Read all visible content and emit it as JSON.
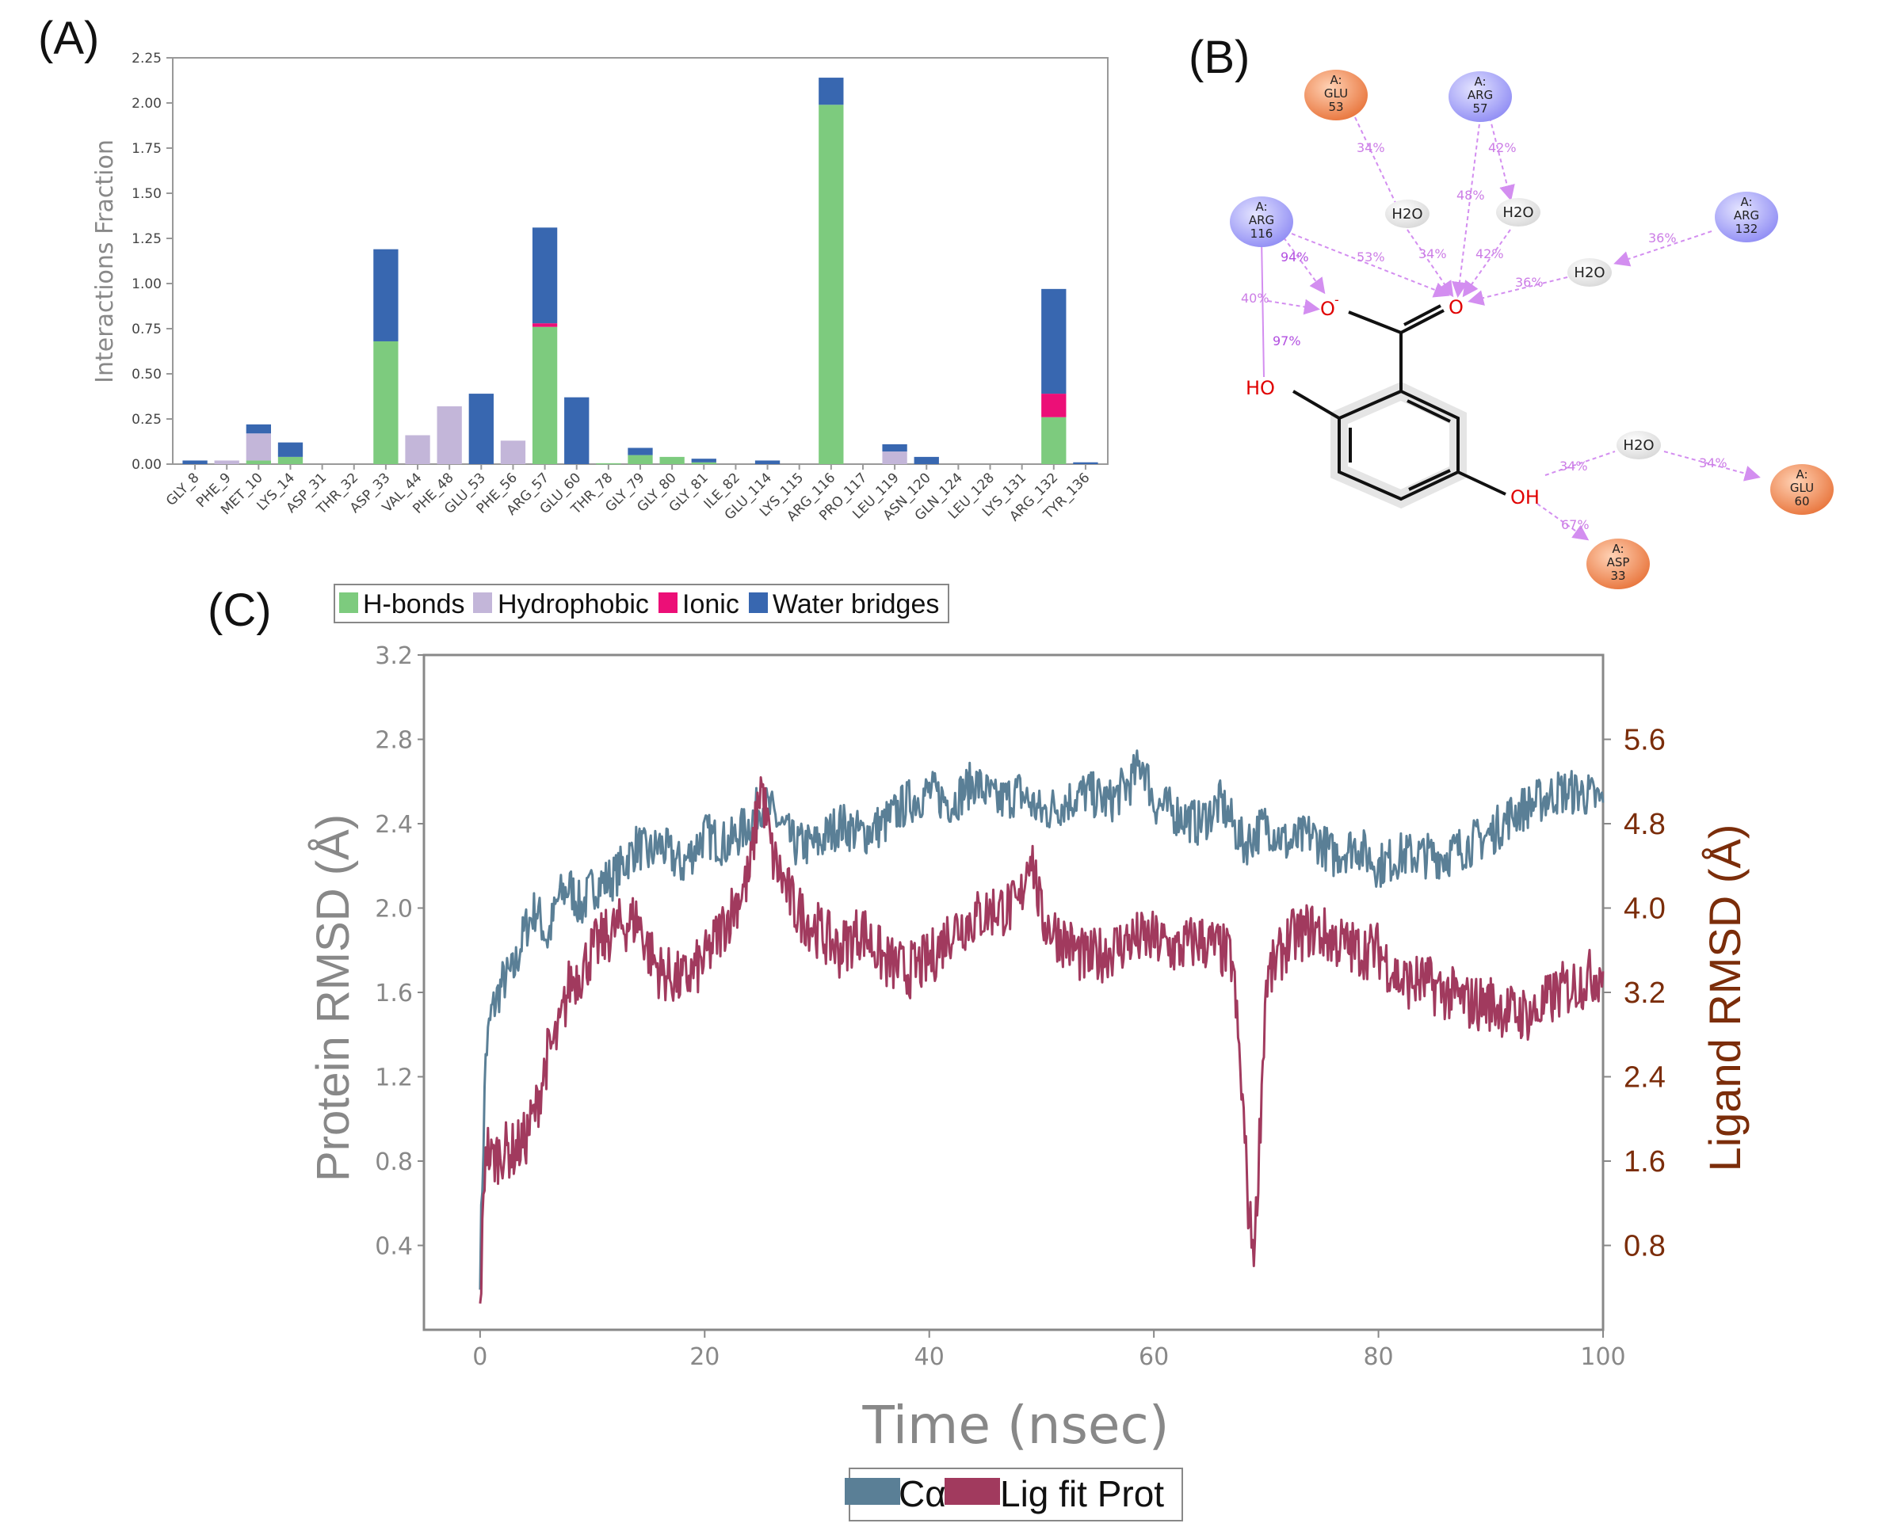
{
  "panels": {
    "a": "(A)",
    "b": "(B)",
    "c": "(C)"
  },
  "chart_data": [
    {
      "type": "bar",
      "stacked": true,
      "title": "",
      "ylabel": "Interactions Fraction",
      "xlabel": "",
      "ylim": [
        0,
        2.25
      ],
      "yticks": [
        "0.00",
        "0.25",
        "0.50",
        "0.75",
        "1.00",
        "1.25",
        "1.50",
        "1.75",
        "2.00",
        "2.25"
      ],
      "categories": [
        "GLY_8",
        "PHE_9",
        "MET_10",
        "LYS_14",
        "ASP_31",
        "THR_32",
        "ASP_33",
        "VAL_44",
        "PHE_48",
        "GLU_53",
        "PHE_56",
        "ARG_57",
        "GLU_60",
        "THR_78",
        "GLY_79",
        "GLY_80",
        "GLY_81",
        "ILE_82",
        "GLU_114",
        "LYS_115",
        "ARG_116",
        "PRO_117",
        "LEU_119",
        "ASN_120",
        "GLN_124",
        "LEU_128",
        "LYS_131",
        "ARG_132",
        "TYR_136"
      ],
      "series": [
        {
          "name": "H-bonds",
          "color": "#7dcb7e",
          "values": [
            0,
            0,
            0.02,
            0.04,
            0,
            0,
            0.68,
            0,
            0,
            0,
            0,
            0.76,
            0,
            0.005,
            0.05,
            0.04,
            0.01,
            0,
            0,
            0,
            1.99,
            0,
            0,
            0,
            0,
            0,
            0,
            0.26,
            0
          ]
        },
        {
          "name": "Hydrophobic",
          "color": "#c3b6d9",
          "values": [
            0,
            0.02,
            0.15,
            0,
            0,
            0,
            0,
            0.16,
            0.32,
            0,
            0.13,
            0,
            0,
            0,
            0,
            0,
            0,
            0,
            0,
            0,
            0,
            0,
            0.07,
            0,
            0,
            0,
            0,
            0,
            0
          ]
        },
        {
          "name": "Ionic",
          "color": "#ec0f77",
          "values": [
            0,
            0,
            0,
            0,
            0,
            0,
            0,
            0,
            0,
            0,
            0,
            0.02,
            0,
            0,
            0,
            0,
            0,
            0,
            0,
            0,
            0,
            0,
            0,
            0,
            0,
            0,
            0,
            0.13,
            0
          ]
        },
        {
          "name": "Water bridges",
          "color": "#3867b0",
          "values": [
            0.02,
            0,
            0.05,
            0.08,
            0,
            0,
            0.51,
            0,
            0,
            0.39,
            0,
            0.53,
            0.37,
            0,
            0.04,
            0,
            0.02,
            0,
            0.02,
            0,
            0.15,
            0,
            0.04,
            0.04,
            0,
            0,
            0,
            0.58,
            0.01
          ]
        }
      ],
      "legend": [
        "H-bonds",
        "Hydrophobic",
        "Ionic",
        "Water bridges"
      ],
      "legend_placement": "bottom"
    },
    {
      "type": "line",
      "title": "",
      "xlabel": "Time (nsec)",
      "ylabel": "Protein RMSD (Å)",
      "ylabel_right": "Ligand RMSD (Å)",
      "xlim": [
        -5,
        100
      ],
      "ylim": [
        0,
        3.2
      ],
      "ylim_right": [
        0,
        6.4
      ],
      "xticks": [
        "0",
        "20",
        "40",
        "60",
        "80",
        "100"
      ],
      "yticks": [
        "0.4",
        "0.8",
        "1.2",
        "1.6",
        "2.0",
        "2.4",
        "2.8",
        "3.2"
      ],
      "yticks_right": [
        "0.8",
        "1.6",
        "2.4",
        "3.2",
        "4.0",
        "4.8",
        "5.6"
      ],
      "series": [
        {
          "name": "Cα",
          "axis": "left",
          "color": "#5a7f96",
          "x": [
            0,
            0.5,
            1,
            2,
            3,
            4,
            5,
            6,
            7,
            8,
            9,
            10,
            12,
            14,
            15,
            16,
            18,
            20,
            22,
            24,
            25,
            26,
            28,
            30,
            32,
            34,
            36,
            38,
            40,
            42,
            44,
            46,
            48,
            50,
            52,
            54,
            56,
            58,
            59,
            60,
            62,
            64,
            66,
            68,
            70,
            72,
            74,
            76,
            78,
            80,
            82,
            84,
            86,
            88,
            90,
            92,
            94,
            96,
            98,
            100
          ],
          "values": [
            0.3,
            1.3,
            1.5,
            1.65,
            1.7,
            1.9,
            2.0,
            1.85,
            2.05,
            2.1,
            2.0,
            2.1,
            2.15,
            2.3,
            2.25,
            2.3,
            2.2,
            2.35,
            2.3,
            2.4,
            2.5,
            2.45,
            2.3,
            2.3,
            2.4,
            2.35,
            2.4,
            2.5,
            2.55,
            2.5,
            2.6,
            2.5,
            2.55,
            2.45,
            2.5,
            2.55,
            2.5,
            2.6,
            2.7,
            2.5,
            2.45,
            2.4,
            2.5,
            2.3,
            2.4,
            2.3,
            2.35,
            2.25,
            2.3,
            2.2,
            2.25,
            2.25,
            2.25,
            2.3,
            2.35,
            2.45,
            2.5,
            2.55,
            2.55,
            2.5
          ]
        },
        {
          "name": "Lig fit Prot",
          "axis": "right",
          "color": "#a13a5e",
          "x": [
            0,
            0.5,
            1,
            2,
            3,
            4,
            5,
            6,
            7,
            8,
            9,
            10,
            12,
            14,
            15,
            16,
            18,
            20,
            22,
            24,
            25,
            26,
            28,
            30,
            32,
            34,
            36,
            38,
            40,
            42,
            44,
            46,
            48,
            49,
            50,
            52,
            54,
            56,
            58,
            60,
            62,
            64,
            66,
            67,
            68,
            68.5,
            69,
            70,
            72,
            74,
            76,
            78,
            80,
            82,
            84,
            86,
            88,
            90,
            92,
            94,
            96,
            98,
            100
          ],
          "values": [
            0.2,
            1.8,
            1.6,
            1.7,
            1.7,
            1.8,
            2.1,
            2.6,
            2.8,
            3.3,
            3.4,
            3.6,
            3.8,
            3.9,
            3.6,
            3.4,
            3.3,
            3.5,
            3.9,
            4.3,
            5.2,
            4.5,
            4.0,
            3.8,
            3.6,
            3.8,
            3.5,
            3.4,
            3.5,
            3.8,
            3.9,
            4.0,
            4.0,
            4.6,
            3.9,
            3.7,
            3.5,
            3.6,
            3.7,
            3.7,
            3.6,
            3.7,
            3.6,
            3.5,
            2.0,
            1.0,
            0.8,
            3.3,
            3.7,
            3.8,
            3.7,
            3.6,
            3.6,
            3.3,
            3.3,
            3.2,
            3.1,
            3.1,
            3.0,
            3.0,
            3.2,
            3.3,
            3.4
          ]
        }
      ],
      "legend": [
        "Cα",
        "Lig fit Prot"
      ],
      "legend_placement": "bottom"
    }
  ],
  "diagram": {
    "residues": [
      {
        "id": "glu53",
        "chain": "A:",
        "name": "GLU",
        "num": "53",
        "kind": "acidic"
      },
      {
        "id": "arg57",
        "chain": "A:",
        "name": "ARG",
        "num": "57",
        "kind": "basic"
      },
      {
        "id": "arg116",
        "chain": "A:",
        "name": "ARG",
        "num": "116",
        "kind": "basic"
      },
      {
        "id": "arg132",
        "chain": "A:",
        "name": "ARG",
        "num": "132",
        "kind": "basic"
      },
      {
        "id": "glu60",
        "chain": "A:",
        "name": "GLU",
        "num": "60",
        "kind": "acidic"
      },
      {
        "id": "asp33",
        "chain": "A:",
        "name": "ASP",
        "num": "33",
        "kind": "acidic"
      }
    ],
    "water_label": "H2O",
    "atoms": {
      "o_minus": "O",
      "minus": "-",
      "o": "O",
      "ho": "HO",
      "oh": "OH"
    },
    "percentages": [
      "34%",
      "42%",
      "48%",
      "34%",
      "42%",
      "94%",
      "53%",
      "36%",
      "36%",
      "40%",
      "97%",
      "34%",
      "34%",
      "67%"
    ],
    "colors": {
      "acidic": "#e8743b",
      "basic": "#8f8cf4",
      "water": "#e4e4e4",
      "contact": "#d38ef0"
    }
  }
}
